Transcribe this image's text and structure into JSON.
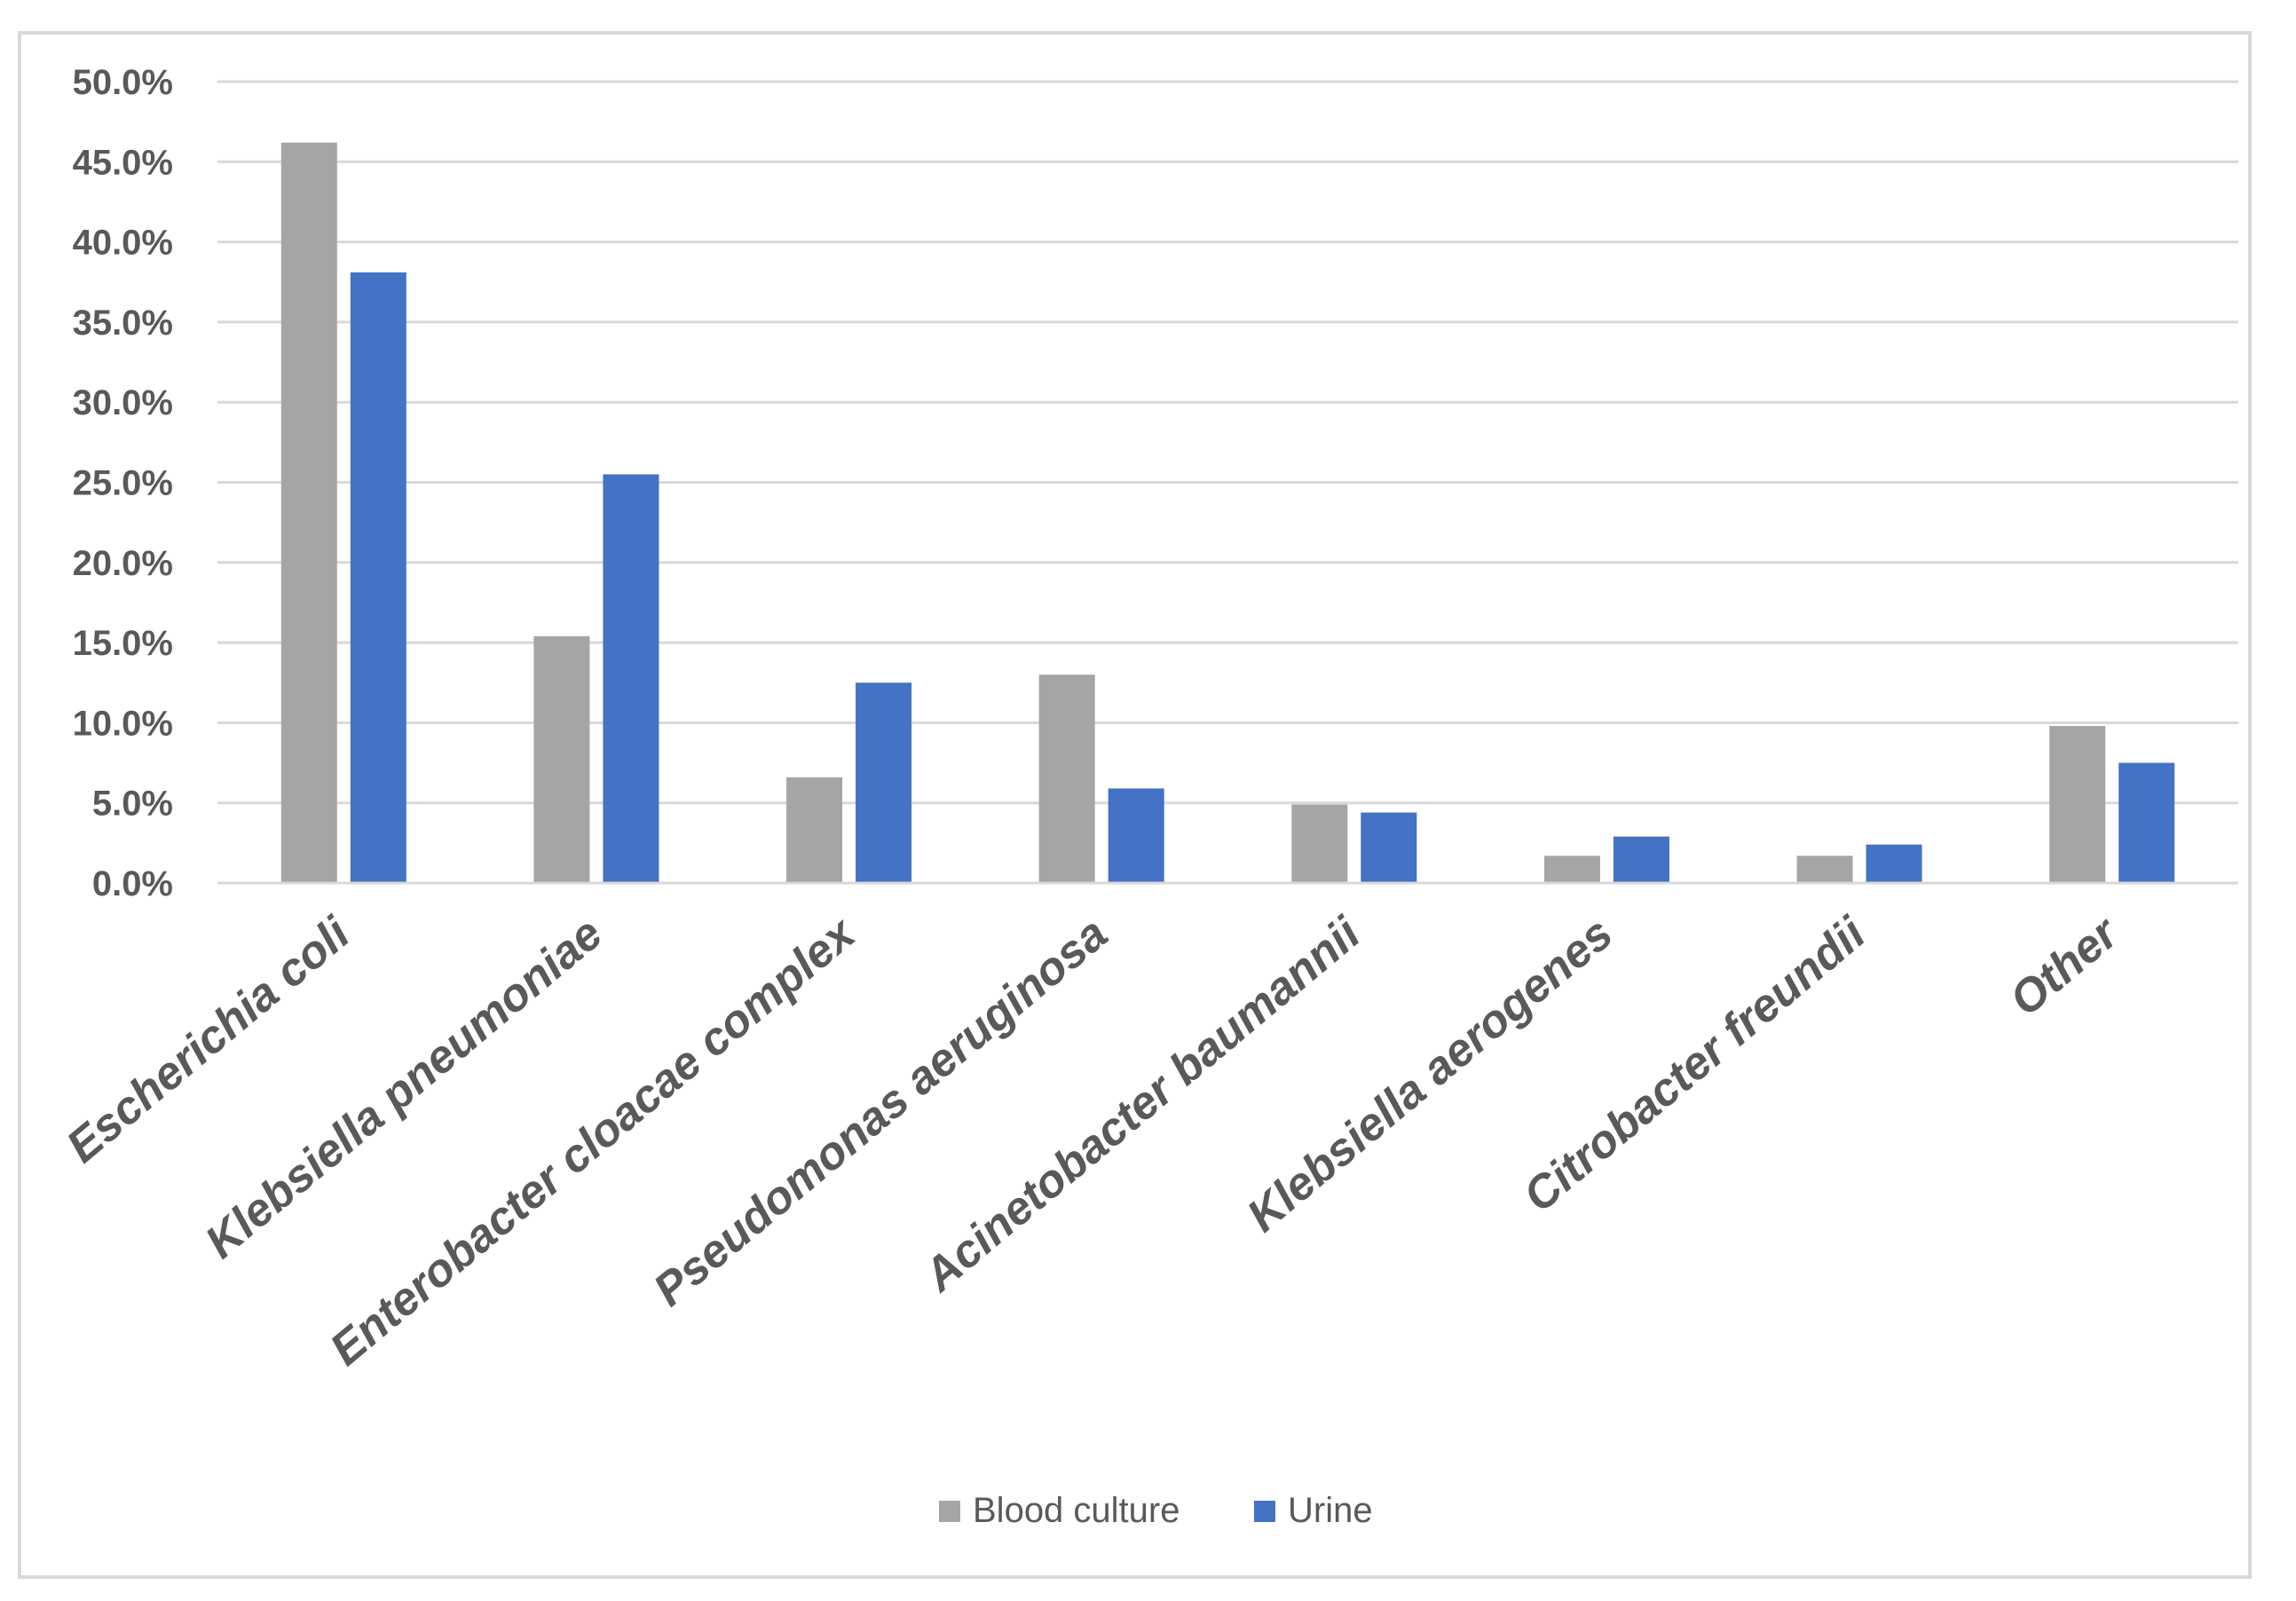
{
  "chart_data": {
    "type": "bar",
    "title": "",
    "xlabel": "",
    "ylabel": "",
    "categories": [
      "Escherichia coli",
      "Klebsiella pneumoniae",
      "Enterobacter cloacae complex",
      "Pseudomonas aeruginosa",
      "Acinetobacter baumannii",
      "Klebsiella aerogenes",
      "Citrobacter freundii",
      "Other"
    ],
    "series": [
      {
        "name": "Blood culture",
        "color": "#a5a5a5",
        "values": [
          46.2,
          15.4,
          6.6,
          13.0,
          4.9,
          1.7,
          1.7,
          9.8
        ]
      },
      {
        "name": "Urine",
        "color": "#4472c4",
        "values": [
          38.1,
          25.5,
          12.5,
          5.9,
          4.4,
          2.9,
          2.4,
          7.5
        ]
      }
    ],
    "ylim": [
      0,
      50
    ],
    "yticks": [
      "0.0%",
      "5.0%",
      "10.0%",
      "15.0%",
      "20.0%",
      "25.0%",
      "30.0%",
      "35.0%",
      "40.0%",
      "45.0%",
      "50.0%"
    ],
    "grid": true,
    "legend": "bottom"
  }
}
